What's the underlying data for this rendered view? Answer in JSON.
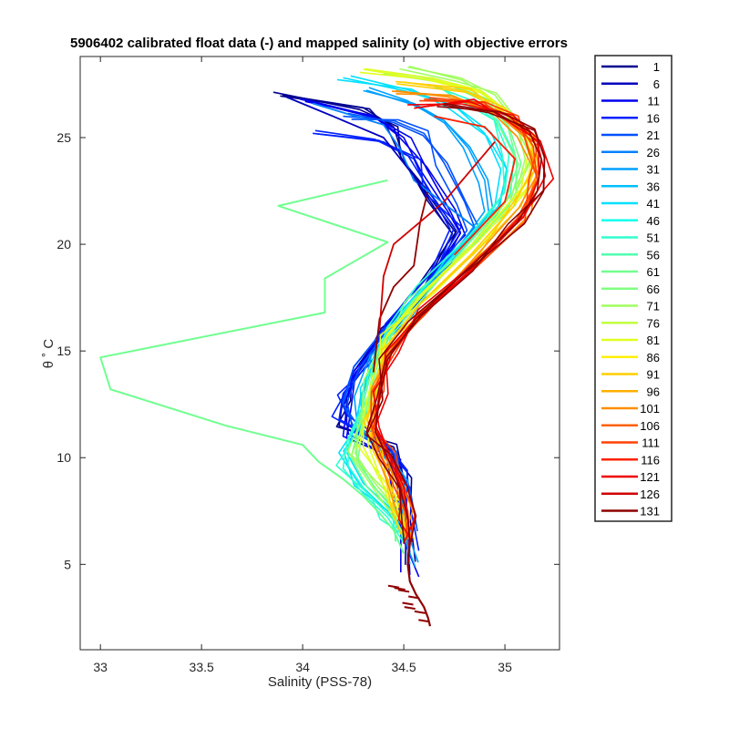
{
  "chart_data": {
    "type": "line",
    "title": "5906402 calibrated float data (-) and mapped salinity (o) with objective errors",
    "xlabel": "Salinity (PSS-78)",
    "ylabel": "θ ˚ C",
    "xlim": [
      32.9,
      35.27
    ],
    "ylim": [
      1.0,
      28.8
    ],
    "xticks": [
      "33",
      "33.5",
      "34",
      "34.5",
      "35"
    ],
    "yticks": [
      "5",
      "10",
      "15",
      "20",
      "25"
    ],
    "grid": false,
    "legend_position": "outside-right",
    "legend": [
      "1",
      "6",
      "11",
      "16",
      "21",
      "26",
      "31",
      "36",
      "41",
      "46",
      "51",
      "56",
      "61",
      "66",
      "71",
      "76",
      "81",
      "86",
      "91",
      "96",
      "101",
      "106",
      "111",
      "116",
      "121",
      "126",
      "131"
    ],
    "legend_colors": [
      "#00008f",
      "#0000bf",
      "#0000ef",
      "#0020ff",
      "#0050ff",
      "#0080ff",
      "#00a0ff",
      "#00c0ff",
      "#00e0ff",
      "#10ffef",
      "#30ffcf",
      "#50ffaf",
      "#70ff8f",
      "#80ff80",
      "#a0ff60",
      "#c0ff40",
      "#e0ff20",
      "#ffef00",
      "#ffcf00",
      "#ffaf00",
      "#ff8f00",
      "#ff6000",
      "#ff4000",
      "#ff2000",
      "#ef0000",
      "#cf0000",
      "#8f0000"
    ],
    "outlier_profile": {
      "name": "66",
      "color": "#70ff8f",
      "points": [
        [
          34.42,
          23.0
        ],
        [
          33.88,
          21.8
        ],
        [
          34.42,
          20.1
        ],
        [
          34.11,
          18.4
        ],
        [
          34.11,
          16.8
        ],
        [
          33.0,
          14.7
        ],
        [
          33.05,
          13.2
        ],
        [
          33.62,
          11.5
        ],
        [
          34.0,
          10.6
        ],
        [
          34.08,
          9.8
        ],
        [
          34.2,
          9.0
        ],
        [
          34.3,
          8.2
        ],
        [
          34.38,
          7.4
        ],
        [
          34.45,
          6.6
        ],
        [
          34.5,
          5.5
        ]
      ]
    },
    "profile_shapes": [
      {
        "color_index": 0,
        "points": [
          [
            33.9,
            27.0
          ],
          [
            34.3,
            26.4
          ],
          [
            34.45,
            25.5
          ],
          [
            34.5,
            24.0
          ],
          [
            34.62,
            22.0
          ],
          [
            34.74,
            20.5
          ],
          [
            34.6,
            18.0
          ],
          [
            34.4,
            16.0
          ],
          [
            34.25,
            14.0
          ],
          [
            34.2,
            12.8
          ],
          [
            34.18,
            11.5
          ],
          [
            34.45,
            10.5
          ],
          [
            34.5,
            9.0
          ],
          [
            34.52,
            7.0
          ],
          [
            34.52,
            5.0
          ]
        ]
      },
      {
        "color_index": 2,
        "points": [
          [
            34.0,
            26.8
          ],
          [
            34.35,
            26.0
          ],
          [
            34.5,
            25.0
          ],
          [
            34.58,
            23.5
          ],
          [
            34.72,
            21.5
          ],
          [
            34.78,
            20.5
          ],
          [
            34.6,
            18.0
          ],
          [
            34.42,
            16.0
          ],
          [
            34.25,
            14.0
          ],
          [
            34.22,
            12.5
          ],
          [
            34.2,
            11.0
          ],
          [
            34.45,
            10.0
          ],
          [
            34.48,
            8.5
          ],
          [
            34.52,
            6.5
          ],
          [
            34.53,
            4.5
          ]
        ]
      },
      {
        "color_index": 3,
        "points": [
          [
            34.05,
            25.2
          ],
          [
            34.4,
            24.8
          ],
          [
            34.55,
            24.0
          ],
          [
            34.62,
            22.5
          ],
          [
            34.75,
            20.8
          ],
          [
            34.65,
            18.5
          ],
          [
            34.45,
            16.2
          ],
          [
            34.3,
            14.3
          ],
          [
            34.2,
            13.0
          ],
          [
            34.18,
            11.8
          ],
          [
            34.38,
            10.8
          ],
          [
            34.48,
            9.5
          ],
          [
            34.5,
            7.5
          ],
          [
            34.53,
            5.5
          ]
        ]
      },
      {
        "color_index": 4,
        "points": [
          [
            34.2,
            26.0
          ],
          [
            34.45,
            25.8
          ],
          [
            34.6,
            25.2
          ],
          [
            34.7,
            23.8
          ],
          [
            34.8,
            22.0
          ],
          [
            34.85,
            20.8
          ],
          [
            34.62,
            18.2
          ],
          [
            34.42,
            16.0
          ],
          [
            34.28,
            14.2
          ],
          [
            34.22,
            12.6
          ],
          [
            34.25,
            11.2
          ],
          [
            34.45,
            10.2
          ],
          [
            34.5,
            8.5
          ],
          [
            34.53,
            6.5
          ]
        ]
      },
      {
        "color_index": 6,
        "points": [
          [
            34.3,
            27.2
          ],
          [
            34.55,
            26.6
          ],
          [
            34.7,
            25.8
          ],
          [
            34.82,
            24.5
          ],
          [
            34.9,
            23.0
          ],
          [
            34.92,
            21.5
          ],
          [
            34.7,
            19.0
          ],
          [
            34.5,
            16.8
          ],
          [
            34.34,
            14.8
          ],
          [
            34.3,
            13.0
          ],
          [
            34.28,
            11.5
          ],
          [
            34.4,
            10.2
          ],
          [
            34.48,
            8.8
          ],
          [
            34.5,
            7.0
          ],
          [
            34.53,
            5.0
          ]
        ]
      },
      {
        "color_index": 8,
        "points": [
          [
            34.2,
            27.8
          ],
          [
            34.5,
            27.2
          ],
          [
            34.75,
            26.5
          ],
          [
            34.9,
            25.2
          ],
          [
            34.98,
            23.5
          ],
          [
            34.95,
            21.8
          ],
          [
            34.72,
            19.2
          ],
          [
            34.5,
            17.0
          ],
          [
            34.36,
            15.0
          ],
          [
            34.3,
            13.2
          ],
          [
            34.26,
            11.6
          ],
          [
            34.22,
            10.2
          ],
          [
            34.3,
            8.8
          ],
          [
            34.45,
            7.5
          ],
          [
            34.5,
            6.0
          ]
        ]
      },
      {
        "color_index": 10,
        "points": [
          [
            34.62,
            27.5
          ],
          [
            34.82,
            26.8
          ],
          [
            34.95,
            25.8
          ],
          [
            35.02,
            24.2
          ],
          [
            35.0,
            22.5
          ],
          [
            34.86,
            20.5
          ],
          [
            34.6,
            18.0
          ],
          [
            34.42,
            16.0
          ],
          [
            34.33,
            14.2
          ],
          [
            34.3,
            12.5
          ],
          [
            34.22,
            10.8
          ],
          [
            34.2,
            9.5
          ],
          [
            34.3,
            8.3
          ],
          [
            34.42,
            7.2
          ],
          [
            34.5,
            6.0
          ]
        ]
      },
      {
        "color_index": 12,
        "points": [
          [
            34.4,
            28.0
          ],
          [
            34.7,
            27.6
          ],
          [
            34.9,
            26.8
          ],
          [
            35.02,
            25.5
          ],
          [
            35.08,
            23.8
          ],
          [
            35.02,
            21.8
          ],
          [
            34.78,
            19.4
          ],
          [
            34.55,
            17.2
          ],
          [
            34.38,
            15.2
          ],
          [
            34.32,
            13.4
          ],
          [
            34.28,
            11.6
          ],
          [
            34.24,
            10.0
          ],
          [
            34.32,
            8.6
          ],
          [
            34.45,
            7.4
          ],
          [
            34.5,
            6.2
          ]
        ]
      },
      {
        "color_index": 14,
        "points": [
          [
            34.52,
            28.3
          ],
          [
            34.78,
            27.8
          ],
          [
            34.95,
            27.0
          ],
          [
            35.06,
            25.6
          ],
          [
            35.1,
            24.0
          ],
          [
            35.05,
            22.2
          ],
          [
            34.82,
            19.8
          ],
          [
            34.58,
            17.5
          ],
          [
            34.4,
            15.5
          ],
          [
            34.34,
            13.6
          ],
          [
            34.3,
            11.8
          ],
          [
            34.26,
            10.2
          ],
          [
            34.35,
            8.9
          ],
          [
            34.46,
            7.6
          ],
          [
            34.52,
            6.3
          ]
        ]
      },
      {
        "color_index": 16,
        "points": [
          [
            34.3,
            28.2
          ],
          [
            34.62,
            27.7
          ],
          [
            34.88,
            27.1
          ],
          [
            35.04,
            26.0
          ],
          [
            35.12,
            24.5
          ],
          [
            35.08,
            22.6
          ],
          [
            34.86,
            20.2
          ],
          [
            34.6,
            17.8
          ],
          [
            34.42,
            15.8
          ],
          [
            34.35,
            13.9
          ],
          [
            34.3,
            12.0
          ],
          [
            34.3,
            10.5
          ],
          [
            34.38,
            9.0
          ],
          [
            34.46,
            7.8
          ],
          [
            34.52,
            6.5
          ]
        ]
      },
      {
        "color_index": 18,
        "points": [
          [
            34.5,
            27.6
          ],
          [
            34.8,
            27.2
          ],
          [
            35.0,
            26.4
          ],
          [
            35.12,
            25.2
          ],
          [
            35.15,
            23.6
          ],
          [
            35.08,
            21.8
          ],
          [
            34.84,
            19.5
          ],
          [
            34.58,
            17.2
          ],
          [
            34.42,
            15.2
          ],
          [
            34.35,
            13.4
          ],
          [
            34.32,
            11.7
          ],
          [
            34.35,
            10.3
          ],
          [
            34.42,
            9.0
          ],
          [
            34.48,
            7.6
          ],
          [
            34.53,
            6.3
          ]
        ]
      },
      {
        "color_index": 20,
        "points": [
          [
            34.46,
            27.2
          ],
          [
            34.72,
            26.9
          ],
          [
            34.95,
            26.2
          ],
          [
            35.1,
            25.0
          ],
          [
            35.16,
            23.4
          ],
          [
            35.1,
            21.6
          ],
          [
            34.86,
            19.2
          ],
          [
            34.6,
            17.0
          ],
          [
            34.43,
            15.0
          ],
          [
            34.36,
            13.2
          ],
          [
            34.34,
            11.6
          ],
          [
            34.4,
            10.3
          ],
          [
            34.46,
            8.8
          ],
          [
            34.5,
            7.5
          ],
          [
            34.53,
            6.2
          ]
        ]
      },
      {
        "color_index": 22,
        "points": [
          [
            34.6,
            26.8
          ],
          [
            34.88,
            26.6
          ],
          [
            35.05,
            25.9
          ],
          [
            35.14,
            24.6
          ],
          [
            35.16,
            23.0
          ],
          [
            35.06,
            21.2
          ],
          [
            34.82,
            18.9
          ],
          [
            34.57,
            16.7
          ],
          [
            34.42,
            14.8
          ],
          [
            34.38,
            13.0
          ],
          [
            34.35,
            11.5
          ],
          [
            34.42,
            10.2
          ],
          [
            34.48,
            8.9
          ],
          [
            34.52,
            7.5
          ],
          [
            34.53,
            6.0
          ]
        ]
      },
      {
        "color_index": 24,
        "points": [
          [
            34.56,
            26.4
          ],
          [
            34.82,
            26.7
          ],
          [
            35.02,
            26.0
          ],
          [
            35.16,
            24.8
          ],
          [
            35.2,
            23.2
          ],
          [
            35.1,
            21.4
          ],
          [
            34.86,
            19.0
          ],
          [
            34.6,
            16.8
          ],
          [
            34.44,
            14.9
          ],
          [
            34.38,
            13.1
          ],
          [
            34.36,
            11.5
          ],
          [
            34.44,
            10.0
          ],
          [
            34.5,
            8.6
          ],
          [
            34.52,
            7.2
          ],
          [
            34.53,
            6.0
          ]
        ]
      },
      {
        "color_index": 26,
        "points": [
          [
            34.7,
            26.6
          ],
          [
            34.95,
            26.2
          ],
          [
            35.12,
            25.3
          ],
          [
            35.18,
            24.0
          ],
          [
            35.16,
            22.5
          ],
          [
            35.06,
            21.0
          ],
          [
            34.8,
            18.7
          ],
          [
            34.56,
            16.5
          ],
          [
            34.42,
            14.6
          ],
          [
            34.38,
            12.8
          ],
          [
            34.36,
            11.2
          ],
          [
            34.42,
            10.0
          ],
          [
            34.48,
            8.6
          ],
          [
            34.52,
            7.2
          ],
          [
            34.53,
            6.0
          ]
        ]
      }
    ],
    "deep_segment": {
      "color": "#8f0000",
      "points": [
        [
          34.53,
          6.0
        ],
        [
          34.52,
          5.0
        ],
        [
          34.53,
          4.2
        ],
        [
          34.56,
          3.6
        ],
        [
          34.6,
          3.0
        ],
        [
          34.62,
          2.5
        ],
        [
          34.63,
          2.1
        ]
      ]
    },
    "extra_segments": [
      {
        "color_index": 26,
        "points": [
          [
            34.62,
            22.5
          ],
          [
            34.58,
            21.0
          ],
          [
            34.55,
            19.0
          ],
          [
            34.45,
            18.0
          ],
          [
            34.38,
            16.5
          ],
          [
            34.35,
            14.0
          ]
        ]
      },
      {
        "color_index": 25,
        "points": [
          [
            34.95,
            24.8
          ],
          [
            34.7,
            22.0
          ],
          [
            34.45,
            20.0
          ],
          [
            34.4,
            18.5
          ],
          [
            34.38,
            16.0
          ]
        ]
      },
      {
        "color_index": 5,
        "points": [
          [
            34.05,
            26.6
          ],
          [
            34.4,
            25.6
          ],
          [
            34.48,
            24.5
          ],
          [
            34.55,
            23.0
          ],
          [
            34.85,
            20.8
          ]
        ]
      },
      {
        "color_index": 1,
        "points": [
          [
            33.92,
            26.9
          ],
          [
            34.15,
            26.0
          ],
          [
            34.4,
            25.0
          ],
          [
            34.55,
            23.2
          ],
          [
            34.7,
            21.0
          ]
        ]
      },
      {
        "color_index": 23,
        "points": [
          [
            34.65,
            26.0
          ],
          [
            34.9,
            25.5
          ],
          [
            35.05,
            24.0
          ],
          [
            35.0,
            22.0
          ],
          [
            34.75,
            19.5
          ]
        ]
      }
    ]
  }
}
